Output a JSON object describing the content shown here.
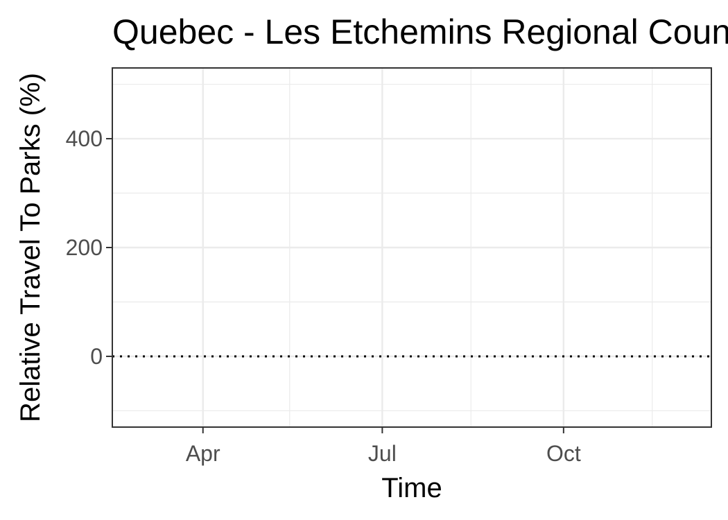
{
  "chart_data": {
    "type": "line",
    "title": "Quebec - Les Etchemins Regional County Municipality",
    "xlabel": "Time",
    "ylabel": "Relative Travel To Parks (%)",
    "x_axis": {
      "type": "date",
      "range": [
        "2020-02-15",
        "2020-12-15"
      ],
      "ticks": [
        {
          "value": "2020-04-01",
          "label": "Apr"
        },
        {
          "value": "2020-07-01",
          "label": "Jul"
        },
        {
          "value": "2020-10-01",
          "label": "Oct"
        }
      ],
      "minor_ticks": [
        "2020-02-15",
        "2020-05-15",
        "2020-08-15",
        "2020-11-15"
      ]
    },
    "y_axis": {
      "range": [
        -130,
        530
      ],
      "ticks": [
        {
          "value": 0,
          "label": "0"
        },
        {
          "value": 200,
          "label": "200"
        },
        {
          "value": 400,
          "label": "400"
        }
      ],
      "minor_ticks": [
        -100,
        100,
        300,
        500
      ]
    },
    "reference_line": {
      "y": 0,
      "style": "dotted",
      "color": "#000000"
    },
    "series": [],
    "grid": true,
    "legend": "none"
  }
}
